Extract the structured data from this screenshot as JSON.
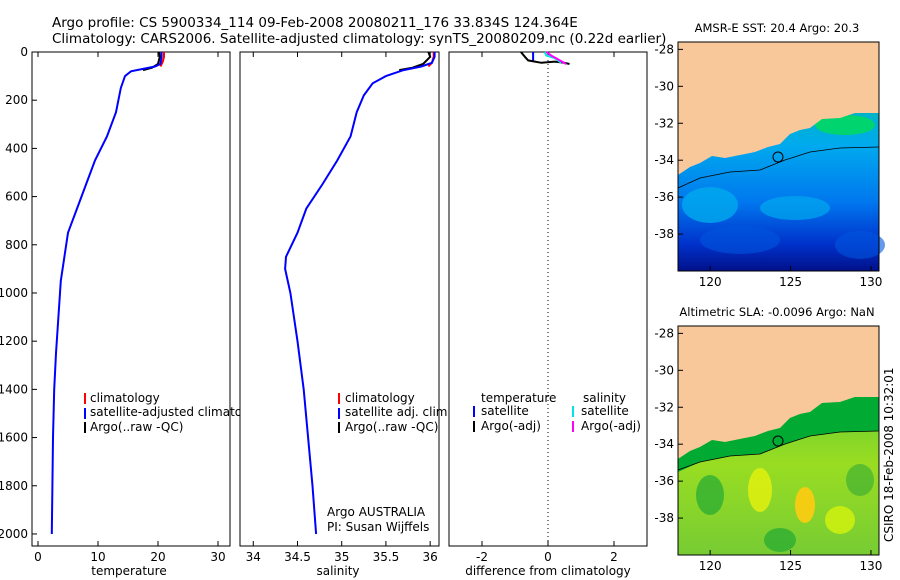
{
  "header": {
    "title_line1": "Argo profile: CS 5900334_114 09-Feb-2008 20080211_176 33.834S 124.364E",
    "title_line2": "Climatology: CARS2006. Satellite-adjusted climatology: synTS_20080209.nc (0.22d earlier)"
  },
  "side_label": "CSIRO 18-Feb-2008 10:32:01",
  "colors": {
    "climatology": "#ff0000",
    "satellite": "#0000ff",
    "argo": "#000000",
    "sal_satellite": "#00e5e5",
    "sal_argo": "#ff00ff",
    "land": "#f8c79a"
  },
  "chart_data": [
    {
      "id": "temperature",
      "type": "line",
      "xlabel": "temperature",
      "ylabel": "",
      "xlim": [
        -1,
        32
      ],
      "ylim": [
        2050,
        0
      ],
      "xticks": [
        "0",
        "10",
        "20",
        "30"
      ],
      "xtick_values": [
        0,
        10,
        20,
        30
      ],
      "yticks": [
        "0",
        "200",
        "400",
        "600",
        "800",
        "1000",
        "1200",
        "1400",
        "1600",
        "1800",
        "2000"
      ],
      "ytick_values": [
        0,
        200,
        400,
        600,
        800,
        1000,
        1200,
        1400,
        1600,
        1800,
        2000
      ],
      "legend": [
        "climatology",
        "satellite-adjusted climatology",
        "Argo(..raw -QC)"
      ],
      "series": [
        {
          "name": "climatology",
          "color": "#ff0000",
          "x": [
            21.0,
            21.0,
            20.8,
            20.4
          ],
          "y": [
            0,
            20,
            40,
            60
          ]
        },
        {
          "name": "Argo(..raw -QC)",
          "color": "#000000",
          "x": [
            20.2,
            20.3,
            20.0,
            19.0,
            17.5
          ],
          "y": [
            0,
            20,
            50,
            65,
            75
          ]
        },
        {
          "name": "satellite-adjusted climatology",
          "color": "#0000ff",
          "x": [
            20.6,
            20.6,
            20.4,
            19.5,
            17.5,
            15.5,
            14.5,
            13.8,
            13.0,
            11.5,
            9.5,
            8.0,
            6.5,
            5.0,
            4.4,
            3.8,
            3.4,
            3.0,
            2.7,
            2.5,
            2.4,
            2.3
          ],
          "y": [
            0,
            20,
            50,
            60,
            70,
            80,
            100,
            150,
            250,
            350,
            450,
            550,
            650,
            750,
            850,
            950,
            1100,
            1250,
            1400,
            1600,
            1800,
            2000
          ]
        }
      ]
    },
    {
      "id": "salinity",
      "type": "line",
      "xlabel": "salinity",
      "ylabel": "",
      "xlim": [
        33.85,
        36.1
      ],
      "ylim": [
        2050,
        0
      ],
      "xticks": [
        "34",
        "34.5",
        "35",
        "35.5",
        "36"
      ],
      "xtick_values": [
        34,
        34.5,
        35,
        35.5,
        36
      ],
      "legend": [
        "climatology",
        "satellite adj. clim.",
        "Argo(..raw -QC)"
      ],
      "annotations": [
        "Argo AUSTRALIA",
        "PI: Susan Wijffels"
      ],
      "series": [
        {
          "name": "climatology",
          "color": "#ff0000",
          "x": [
            36.04,
            36.04,
            36.02,
            35.98
          ],
          "y": [
            0,
            20,
            45,
            60
          ]
        },
        {
          "name": "Argo(..raw -QC)",
          "color": "#000000",
          "x": [
            35.98,
            36.0,
            35.92,
            35.8,
            35.65
          ],
          "y": [
            0,
            20,
            50,
            65,
            75
          ]
        },
        {
          "name": "satellite adj. clim.",
          "color": "#0000ff",
          "x": [
            36.05,
            36.05,
            36.02,
            35.9,
            35.7,
            35.5,
            35.35,
            35.25,
            35.17,
            35.1,
            34.95,
            34.78,
            34.6,
            34.5,
            34.37,
            34.36,
            34.42,
            34.5,
            34.57,
            34.62,
            34.67,
            34.71
          ],
          "y": [
            0,
            20,
            45,
            60,
            75,
            100,
            130,
            180,
            250,
            350,
            450,
            550,
            650,
            750,
            850,
            900,
            1000,
            1200,
            1400,
            1600,
            1800,
            2000
          ]
        }
      ]
    },
    {
      "id": "difference",
      "type": "line",
      "xlabel": "difference from climatology",
      "ylabel": "",
      "xlim": [
        -3,
        3
      ],
      "ylim": [
        2050,
        0
      ],
      "xticks": [
        "-2",
        "0",
        "2"
      ],
      "xtick_values": [
        -2,
        0,
        2
      ],
      "legend_left_title": "temperature",
      "legend_right_title": "salinity",
      "legend_left": [
        "satellite",
        "Argo(-adj)"
      ],
      "legend_right": [
        "satellite",
        "Argo(-adj)"
      ],
      "series": [
        {
          "name": "temperature satellite",
          "color": "#0000ff",
          "x": [
            -0.45,
            -0.45
          ],
          "y": [
            0,
            40
          ]
        },
        {
          "name": "temperature Argo(-adj)",
          "color": "#000000",
          "x": [
            -0.82,
            -0.7,
            -0.6,
            -0.2,
            0.2,
            0.5,
            0.65
          ],
          "y": [
            0,
            20,
            35,
            45,
            40,
            45,
            50
          ]
        },
        {
          "name": "salinity satellite",
          "color": "#00e5e5",
          "x": [
            -0.1,
            -0.05,
            0.2,
            0.4
          ],
          "y": [
            0,
            15,
            25,
            45
          ]
        },
        {
          "name": "salinity Argo(-adj)",
          "color": "#ff00ff",
          "x": [
            -0.05,
            0.1,
            0.3,
            0.55
          ],
          "y": [
            0,
            15,
            30,
            50
          ]
        }
      ]
    },
    {
      "id": "sst_map",
      "type": "heatmap",
      "title": "AMSR-E SST: 20.4 Argo: 20.3",
      "xlim": [
        118,
        130.5
      ],
      "ylim": [
        -40,
        -27.6
      ],
      "xticks": [
        "120",
        "125",
        "130"
      ],
      "xtick_values": [
        120,
        125,
        130
      ],
      "yticks": [
        "-28",
        "-30",
        "-32",
        "-34",
        "-36",
        "-38"
      ],
      "ytick_values": [
        -28,
        -30,
        -32,
        -34,
        -36,
        -38
      ],
      "marker": {
        "lon": 124.364,
        "lat": -33.834
      }
    },
    {
      "id": "sla_map",
      "type": "heatmap",
      "title": "Altimetric SLA: -0.0096 Argo: NaN",
      "xlim": [
        118,
        130.5
      ],
      "ylim": [
        -40,
        -27.6
      ],
      "xticks": [
        "120",
        "125",
        "130"
      ],
      "xtick_values": [
        120,
        125,
        130
      ],
      "yticks": [
        "-28",
        "-30",
        "-32",
        "-34",
        "-36",
        "-38"
      ],
      "ytick_values": [
        -28,
        -30,
        -32,
        -34,
        -36,
        -38
      ],
      "marker": {
        "lon": 124.364,
        "lat": -33.834
      }
    }
  ]
}
